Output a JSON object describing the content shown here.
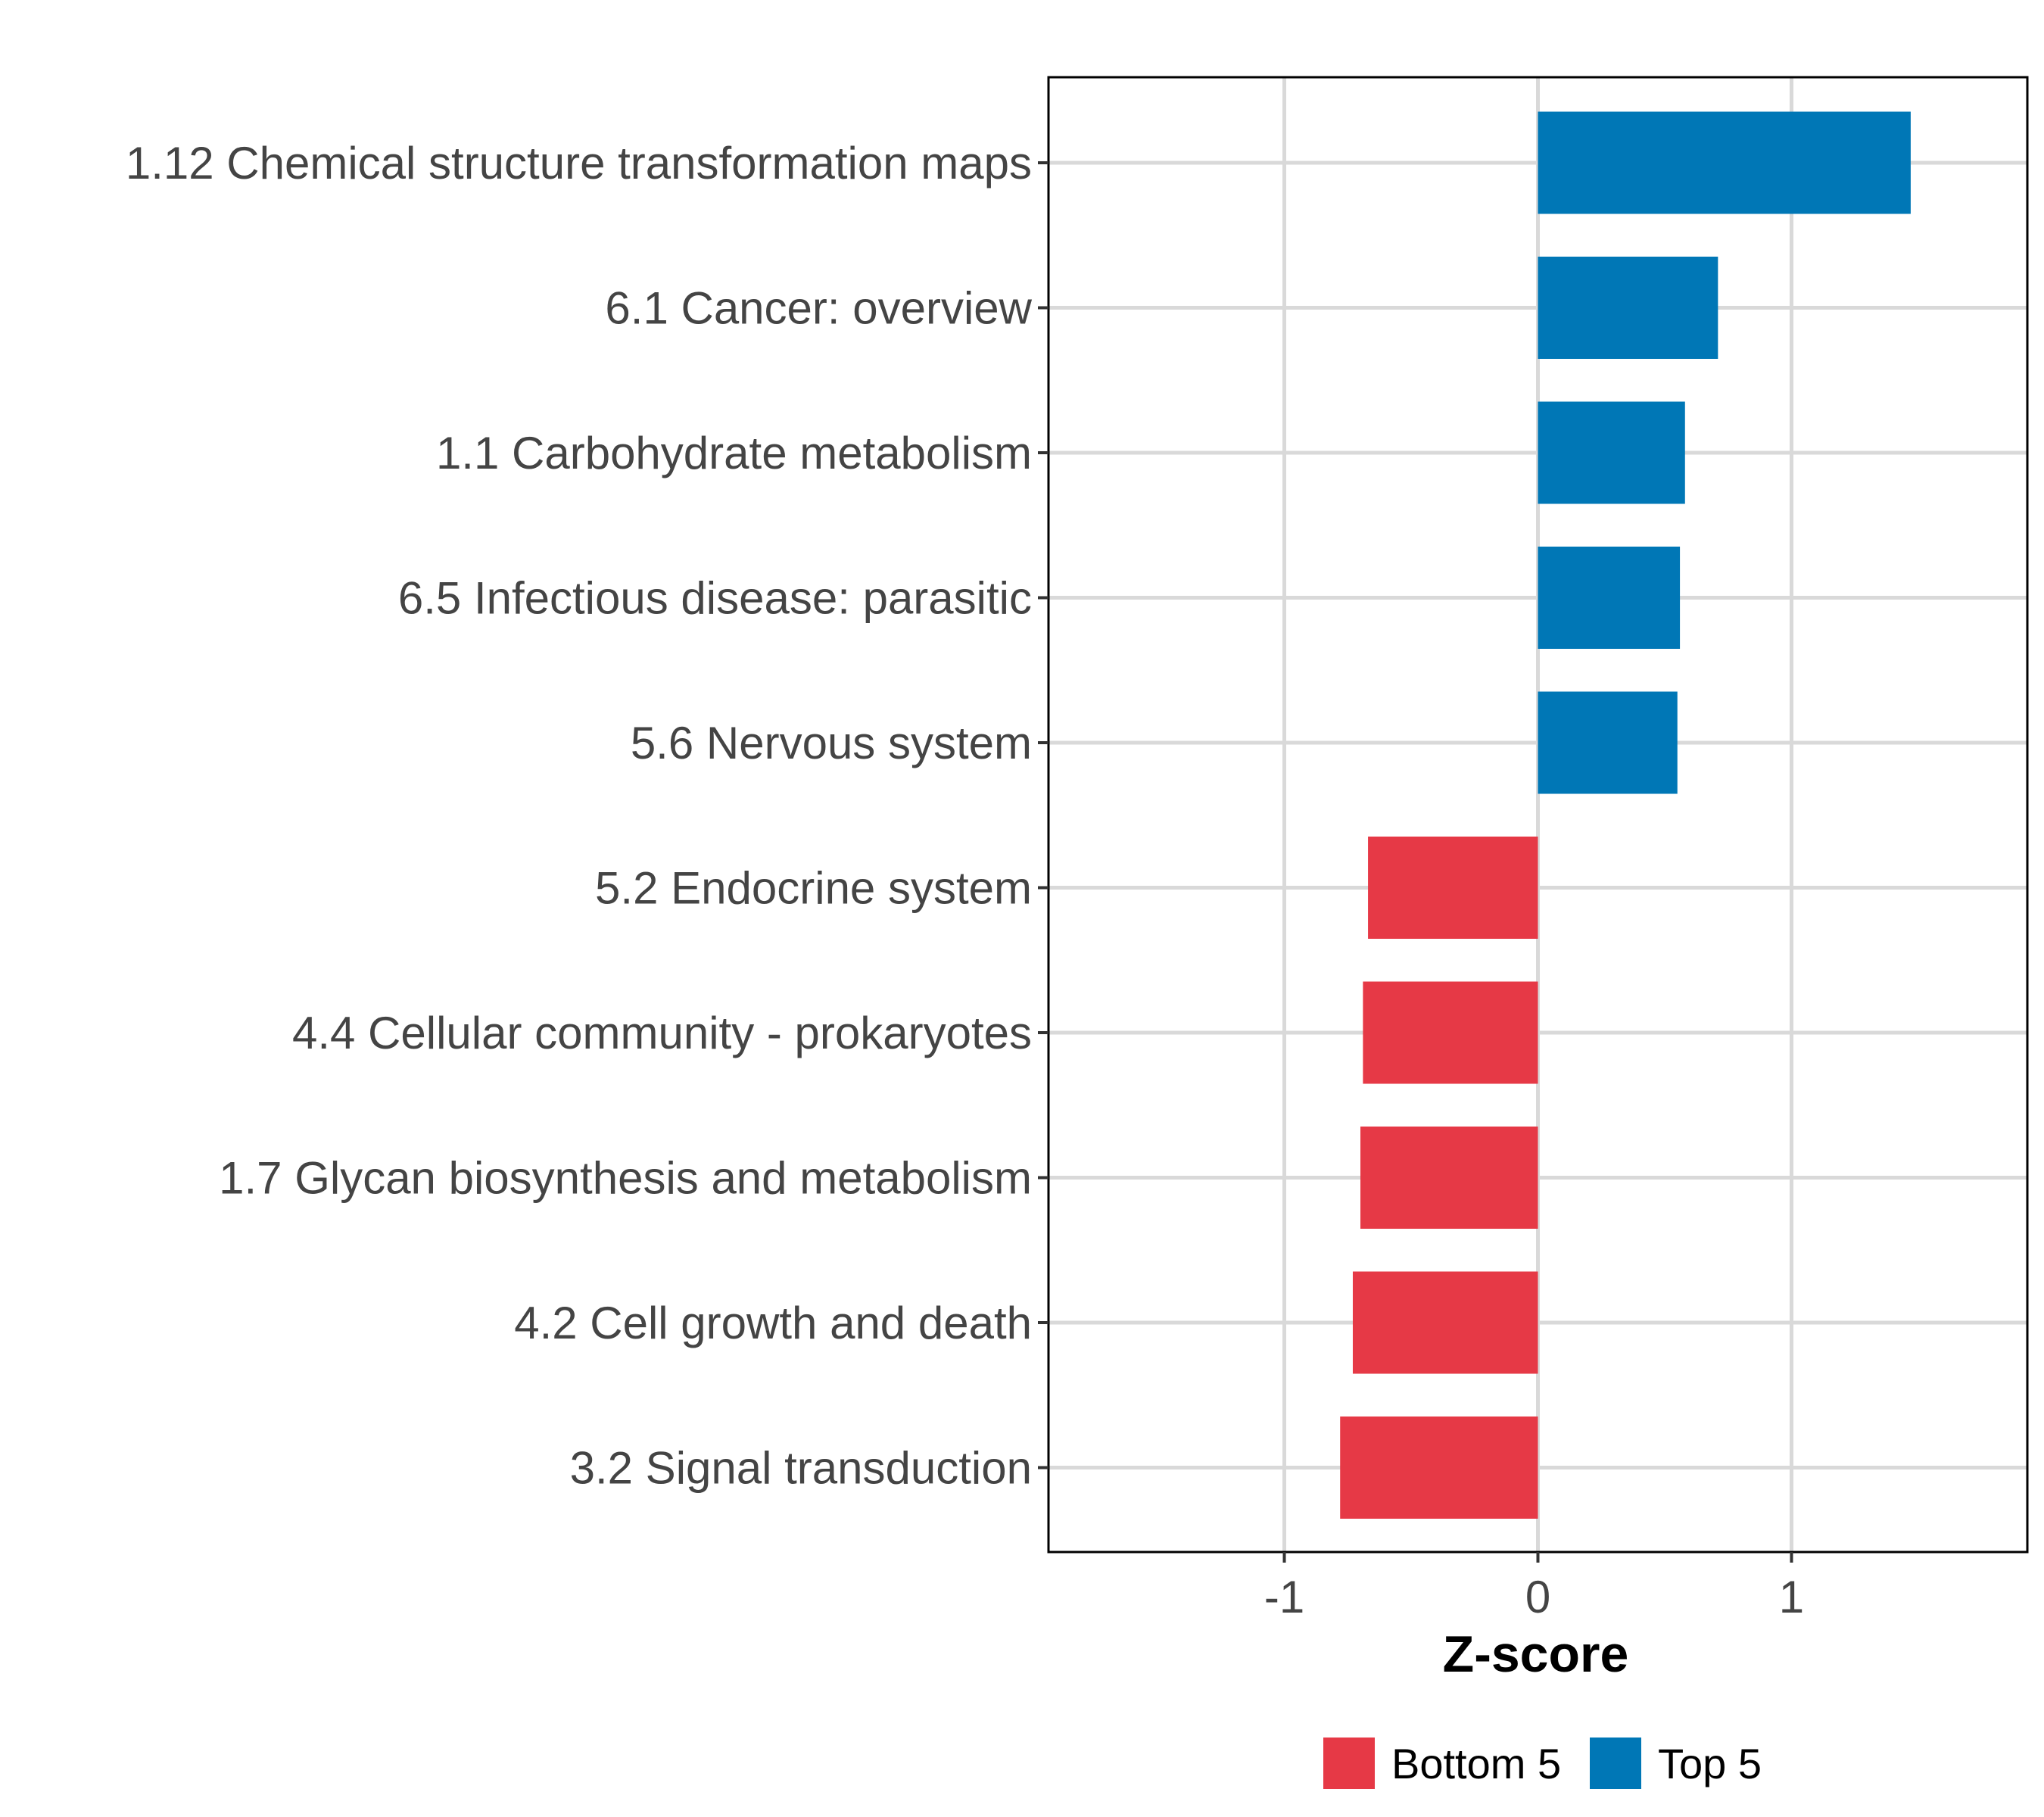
{
  "chart_data": {
    "type": "bar",
    "orientation": "horizontal",
    "categories": [
      "1.12 Chemical structure transformation maps",
      "6.1 Cancer: overview",
      "1.1 Carbohydrate metabolism",
      "6.5 Infectious disease: parasitic",
      "5.6 Nervous system",
      "5.2 Endocrine system",
      "4.4 Cellular community - prokaryotes",
      "1.7 Glycan biosynthesis and metabolism",
      "4.2 Cell growth and death",
      "3.2 Signal transduction"
    ],
    "values": [
      1.47,
      0.71,
      0.58,
      0.56,
      0.55,
      -0.67,
      -0.69,
      -0.7,
      -0.73,
      -0.78
    ],
    "groups": [
      "Top 5",
      "Top 5",
      "Top 5",
      "Top 5",
      "Top 5",
      "Bottom 5",
      "Bottom 5",
      "Bottom 5",
      "Bottom 5",
      "Bottom 5"
    ],
    "xlabel": "Z-score",
    "ylabel": "",
    "xlim": [
      -1.93,
      1.93
    ],
    "xticks": [
      -1,
      0,
      1
    ],
    "xtick_labels": [
      "-1",
      "0",
      "1"
    ],
    "grid": true,
    "legend_position": "bottom",
    "legend": [
      {
        "name": "Bottom 5",
        "color": "#E63946"
      },
      {
        "name": "Top 5",
        "color": "#0077B6"
      }
    ]
  }
}
